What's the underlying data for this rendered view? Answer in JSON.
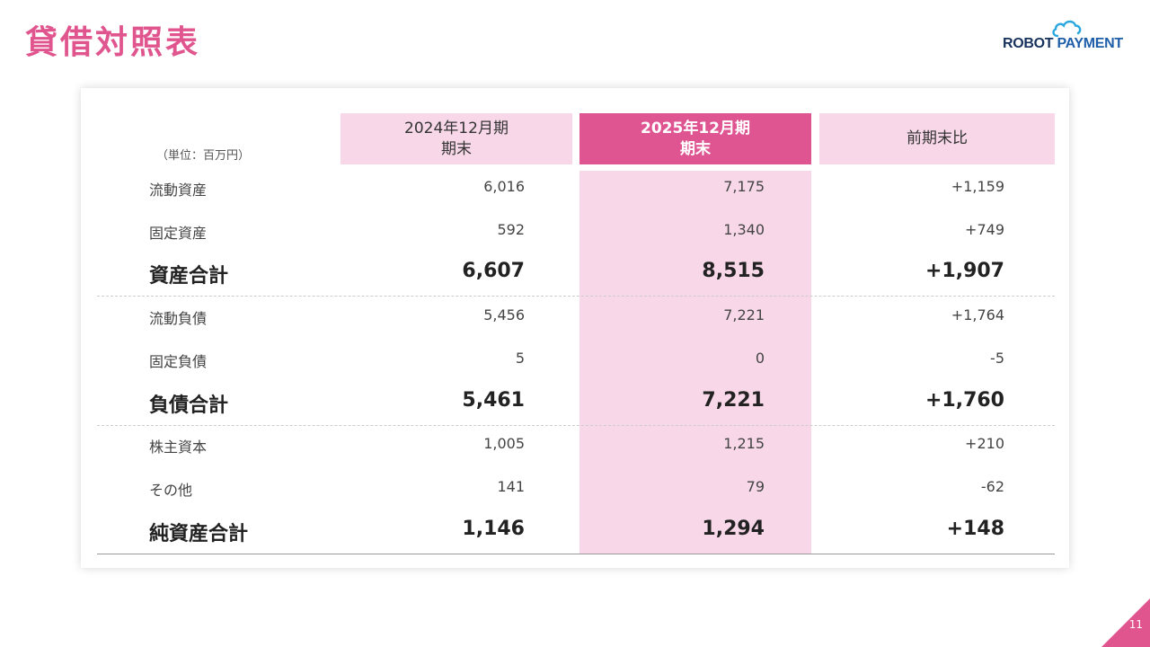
{
  "title": "貸借対照表",
  "logo": {
    "text_part1": "ROBOT",
    "text_part2": "PAYMENT",
    "icon": "cloud-icon"
  },
  "table": {
    "unit": "（単位：百万円）",
    "headers": {
      "col1": {
        "line1": "2024年12月期",
        "line2": "期末"
      },
      "col2": {
        "line1": "2025年12月期",
        "line2": "期末"
      },
      "col3": {
        "line1": "前期末比"
      }
    },
    "rows": [
      {
        "label": "流動資産",
        "v2024": "6,016",
        "v2025": "7,175",
        "diff": "+1,159"
      },
      {
        "label": "固定資産",
        "v2024": "592",
        "v2025": "1,340",
        "diff": "+749"
      },
      {
        "label": "資産合計",
        "v2024": "6,607",
        "v2025": "8,515",
        "diff": "+1,907"
      },
      {
        "label": "流動負債",
        "v2024": "5,456",
        "v2025": "7,221",
        "diff": "+1,764"
      },
      {
        "label": "固定負債",
        "v2024": "5",
        "v2025": "0",
        "diff": "-5"
      },
      {
        "label": "負債合計",
        "v2024": "5,461",
        "v2025": "7,221",
        "diff": "+1,760"
      },
      {
        "label": "株主資本",
        "v2024": "1,005",
        "v2025": "1,215",
        "diff": "+210"
      },
      {
        "label": "その他",
        "v2024": "141",
        "v2025": "79",
        "diff": "-62"
      },
      {
        "label": "純資産合計",
        "v2024": "1,146",
        "v2025": "1,294",
        "diff": "+148"
      }
    ]
  },
  "colors": {
    "accent": "#e0558e",
    "header_light": "#f8d8e8",
    "header_strong": "#df5592"
  },
  "page_number": "11"
}
